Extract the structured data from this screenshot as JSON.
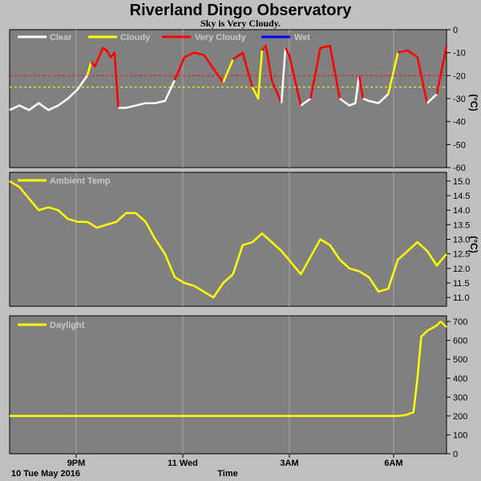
{
  "header": {
    "title": "Riverland Dingo Observatory",
    "subtitle": "Sky is Very Cloudy."
  },
  "footer": {
    "date_label": "10 Tue May 2016",
    "x_axis_label": "Time"
  },
  "colors": {
    "panel_bg": "#808080",
    "page_bg": "#c0c0c0",
    "clear": "#ffffff",
    "cloudy": "#ffff00",
    "very_cloudy": "#ff0000",
    "wet": "#0000ff",
    "threshold_red": "#ff0000",
    "threshold_yellow": "#ffff00"
  },
  "x_ticks": [
    "9PM",
    "11 Wed",
    "3AM",
    "6AM"
  ],
  "chart_data": [
    {
      "type": "line",
      "name": "sky",
      "unit": "(°C)",
      "ylim": [
        -60,
        0
      ],
      "yticks": [
        "0",
        "-10",
        "-20",
        "-30",
        "-40",
        "-50",
        "-60"
      ],
      "legend": [
        "Clear",
        "Cloudy",
        "Very Cloudy",
        "Wet"
      ],
      "thresholds": [
        {
          "y": -20,
          "color": "red"
        },
        {
          "y": -25,
          "color": "yellow"
        }
      ],
      "x": [
        0,
        0.25,
        0.5,
        0.75,
        1,
        1.25,
        1.5,
        1.75,
        2,
        2.1,
        2.2,
        2.3,
        2.4,
        2.5,
        2.6,
        2.7,
        2.8,
        3.0,
        3.5,
        3.75,
        4,
        4.25,
        4.5,
        4.75,
        5,
        5.5,
        5.75,
        6,
        6.25,
        6.4,
        6.5,
        6.6,
        6.75,
        7,
        7.1,
        7.2,
        7.5,
        7.75,
        8,
        8.25,
        8.5,
        8.75,
        8.9,
        9.0,
        9.1,
        9.25,
        9.5,
        9.75,
        10,
        10.25,
        10.5,
        10.75,
        11,
        11.25
      ],
      "y": [
        -35,
        -33,
        -35,
        -32,
        -35,
        -33,
        -30,
        -26,
        -20,
        -14,
        -16,
        -12,
        -8,
        -9,
        -12,
        -10,
        -34,
        -34,
        -32,
        -32,
        -31,
        -22,
        -12,
        -10,
        -11,
        -23,
        -13,
        -10,
        -25,
        -30,
        -9,
        -7,
        -22,
        -32,
        -8,
        -11,
        -33,
        -30,
        -8,
        -7,
        -30,
        -33,
        -32,
        -20,
        -30,
        -31,
        -32,
        -28,
        -10,
        -9,
        -12,
        -32,
        -28,
        -7
      ],
      "segments": [
        {
          "cls": "clear",
          "x": [
            0,
            2
          ]
        },
        {
          "cls": "cloudy",
          "x": [
            2,
            2.1
          ]
        },
        {
          "cls": "very_cloudy",
          "x": [
            2.1,
            2.8
          ]
        },
        {
          "cls": "clear",
          "x": [
            2.8,
            4.25
          ]
        },
        {
          "cls": "very_cloudy",
          "x": [
            4.25,
            5.5
          ]
        },
        {
          "cls": "cloudy",
          "x": [
            5.5,
            5.75
          ]
        },
        {
          "cls": "very_cloudy",
          "x": [
            5.75,
            6.25
          ]
        },
        {
          "cls": "cloudy",
          "x": [
            6.25,
            6.5
          ]
        },
        {
          "cls": "very_cloudy",
          "x": [
            6.5,
            7
          ]
        },
        {
          "cls": "clear",
          "x": [
            7,
            7.1
          ]
        },
        {
          "cls": "very_cloudy",
          "x": [
            7.1,
            7.5
          ]
        },
        {
          "cls": "clear",
          "x": [
            7.5,
            7.75
          ]
        },
        {
          "cls": "very_cloudy",
          "x": [
            7.75,
            8.5
          ]
        },
        {
          "cls": "clear",
          "x": [
            8.5,
            9.0
          ]
        },
        {
          "cls": "very_cloudy",
          "x": [
            9.0,
            9.1
          ]
        },
        {
          "cls": "clear",
          "x": [
            9.1,
            9.75
          ]
        },
        {
          "cls": "cloudy",
          "x": [
            9.75,
            10
          ]
        },
        {
          "cls": "very_cloudy",
          "x": [
            10,
            10.75
          ]
        },
        {
          "cls": "clear",
          "x": [
            10.75,
            11
          ]
        },
        {
          "cls": "very_cloudy",
          "x": [
            11,
            11.25
          ]
        }
      ]
    },
    {
      "type": "line",
      "name": "ambient",
      "unit": "(°C)",
      "ylim": [
        10.7,
        15.3
      ],
      "yticks": [
        "15.0",
        "14.5",
        "14.0",
        "13.5",
        "13.0",
        "12.5",
        "12.0",
        "11.5",
        "11.0"
      ],
      "legend": [
        "Ambient Temp"
      ],
      "x": [
        0,
        0.25,
        0.5,
        0.75,
        1,
        1.25,
        1.5,
        1.75,
        2,
        2.25,
        2.5,
        2.75,
        3,
        3.25,
        3.5,
        3.75,
        4,
        4.25,
        4.5,
        4.75,
        5,
        5.25,
        5.5,
        5.75,
        6,
        6.25,
        6.5,
        6.75,
        7,
        7.25,
        7.5,
        7.75,
        8,
        8.25,
        8.5,
        8.75,
        9,
        9.25,
        9.5,
        9.75,
        10,
        10.25,
        10.5,
        10.75,
        11,
        11.25
      ],
      "y": [
        15.0,
        14.8,
        14.4,
        14.0,
        14.1,
        14.0,
        13.7,
        13.6,
        13.6,
        13.4,
        13.5,
        13.6,
        13.9,
        13.9,
        13.6,
        13.0,
        12.5,
        11.7,
        11.5,
        11.4,
        11.2,
        11.0,
        11.5,
        11.8,
        12.8,
        12.9,
        13.2,
        12.9,
        12.6,
        12.2,
        11.8,
        12.4,
        13.0,
        12.8,
        12.3,
        12.0,
        11.9,
        11.7,
        11.2,
        11.3,
        12.3,
        12.6,
        12.9,
        12.6,
        12.1,
        12.5
      ]
    },
    {
      "type": "line",
      "name": "daylight",
      "ylim": [
        0,
        730
      ],
      "yticks": [
        "700",
        "600",
        "500",
        "400",
        "300",
        "200",
        "100",
        "0"
      ],
      "legend": [
        "Daylight"
      ],
      "x": [
        0,
        1,
        2,
        3,
        4,
        5,
        6,
        7,
        8,
        9,
        9.5,
        10.0,
        10.2,
        10.4,
        10.5,
        10.6,
        10.75,
        11.0,
        11.1,
        11.25
      ],
      "y": [
        200,
        200,
        200,
        200,
        200,
        200,
        200,
        200,
        200,
        200,
        200,
        200,
        205,
        220,
        400,
        620,
        650,
        680,
        700,
        670
      ]
    }
  ]
}
